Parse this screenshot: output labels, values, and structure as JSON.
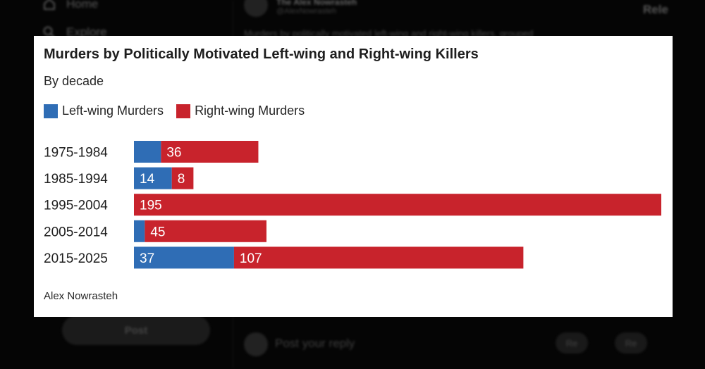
{
  "background": {
    "nav_home": "Home",
    "nav_explore": "Explore",
    "post_button": "Post",
    "author_name": "The Alex Nowrasteh",
    "author_handle": "@AlexNowrasteh",
    "tweet_text": "Murders by politically motivated left-wing and right-wing killers, grouped",
    "relevant_label": "Rele",
    "reply_placeholder": "Post your reply",
    "reply_button_1": "Re",
    "reply_button_2": "Re"
  },
  "colors": {
    "left": "#2f6db5",
    "right": "#c8232c"
  },
  "chart_data": {
    "type": "bar",
    "orientation": "horizontal",
    "stacked": true,
    "title": "Murders by Politically Motivated Left-wing and Right-wing Killers",
    "subtitle": "By decade",
    "legend_placement": "top-left",
    "categories": [
      "1975-1984",
      "1985-1994",
      "1995-2004",
      "2005-2014",
      "2015-2025"
    ],
    "series": [
      {
        "name": "Left-wing Murders",
        "values": [
          10,
          14,
          0,
          4,
          37
        ],
        "labels": [
          "",
          "14",
          "",
          "",
          "37"
        ]
      },
      {
        "name": "Right-wing Murders",
        "values": [
          36,
          8,
          195,
          45,
          107
        ],
        "labels": [
          "36",
          "8",
          "195",
          "45",
          "107"
        ]
      }
    ],
    "xlim": [
      0,
      195
    ],
    "grid": false,
    "source": "Alex Nowrasteh"
  }
}
